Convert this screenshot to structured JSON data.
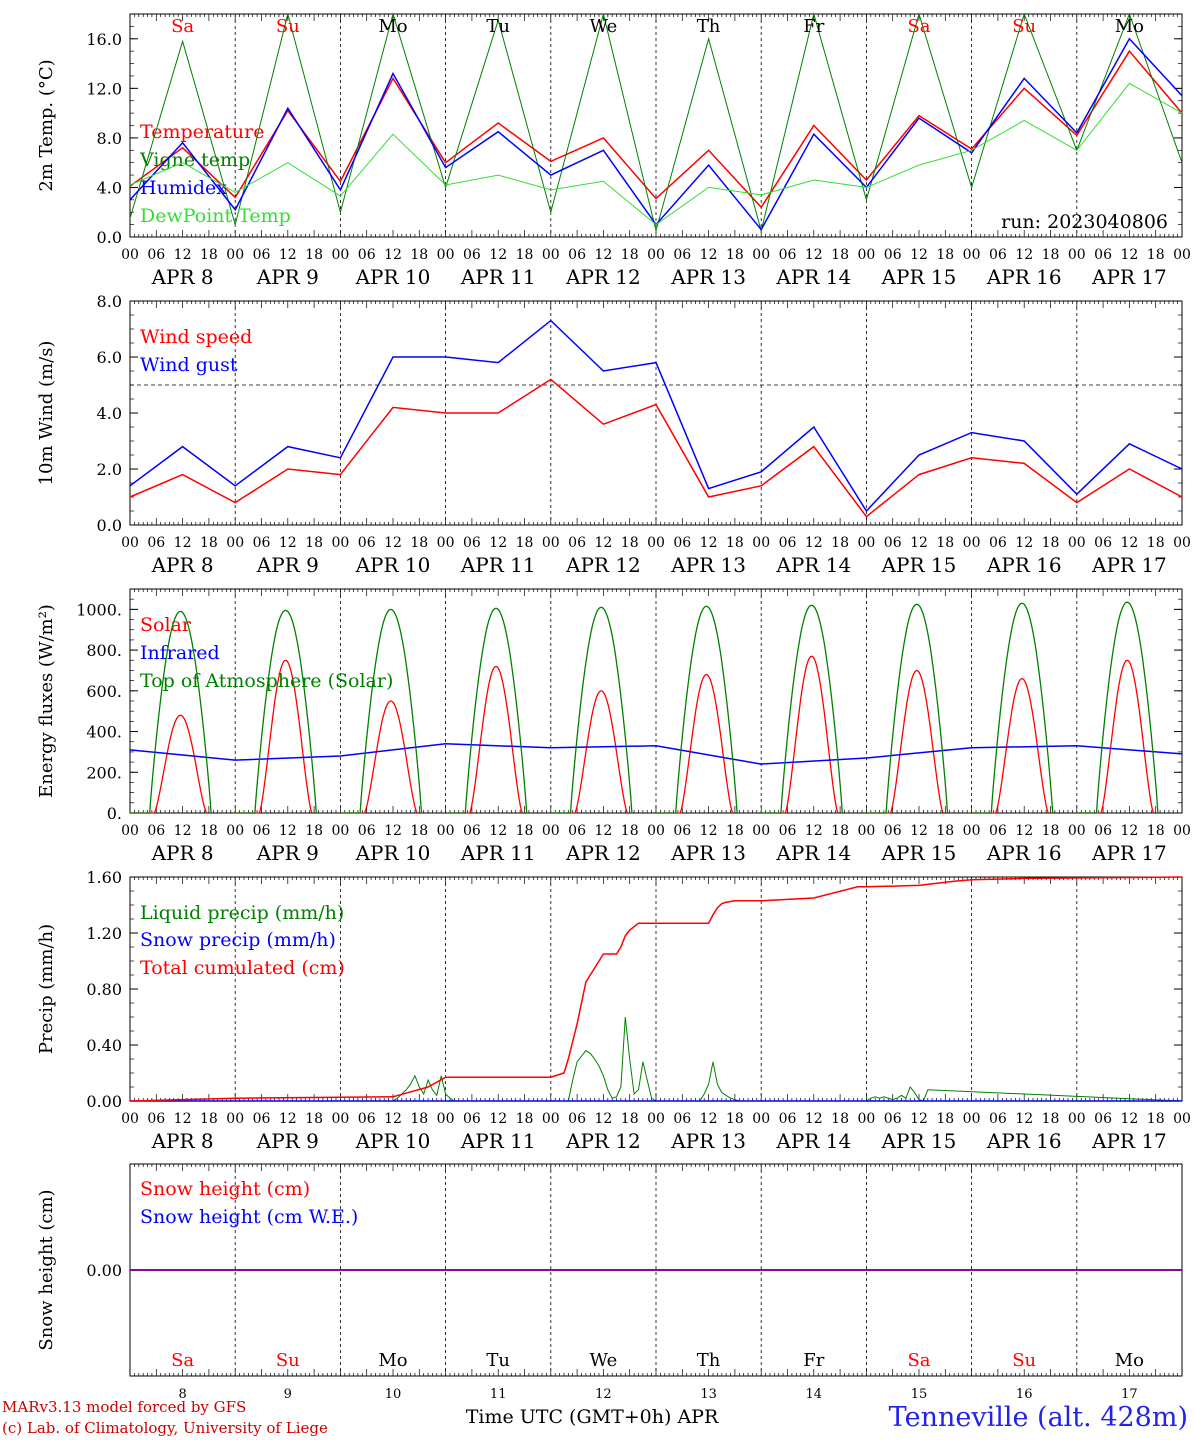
{
  "footer": {
    "credit_line1": "MARv3.13 model forced by GFS",
    "credit_line2": "(c) Lab. of Climatology, University of Liege",
    "station": "Tenneville (alt. 428m)"
  },
  "colors": {
    "temperature": "#ff0000",
    "vigne": "#008000",
    "humidex": "#0000ff",
    "dewpoint": "#33dd33",
    "wind_speed": "#ff0000",
    "wind_gust": "#0000ff",
    "solar": "#ff0000",
    "infrared": "#0000ff",
    "toa": "#008000",
    "liquid": "#008000",
    "snow": "#0000ff",
    "cumulated": "#ff0000",
    "snow_height": "#800080",
    "weekend": "#ff0000",
    "weekday": "#000000"
  },
  "chart_data": {
    "type": "line",
    "run_label": "run: 2023040806",
    "day_names": [
      "Sa",
      "Su",
      "Mo",
      "Tu",
      "We",
      "Th",
      "Fr",
      "Sa",
      "Su",
      "Mo"
    ],
    "weekend_flags": [
      true,
      true,
      false,
      false,
      false,
      false,
      false,
      true,
      true,
      false
    ],
    "date_labels": [
      "APR  8",
      "APR  9",
      "APR 10",
      "APR 11",
      "APR 12",
      "APR 13",
      "APR 14",
      "APR 15",
      "APR 16",
      "APR 17"
    ],
    "hour_ticks": [
      "00",
      "06",
      "12",
      "18"
    ],
    "final_hour_label": "00",
    "bottom_day_numbers": [
      "8",
      "9",
      "10",
      "11",
      "12",
      "13",
      "14",
      "15",
      "16",
      "17"
    ],
    "bottom_axis_label": "Time UTC (GMT+0h) APR",
    "panels": [
      {
        "id": "temp",
        "ylabel": "2m Temp. (°C)",
        "ylim": [
          0,
          18
        ],
        "yticks": [
          0,
          4,
          8,
          12,
          16
        ],
        "ytick_labels": [
          "0.0",
          "4.0",
          "8.0",
          "12.0",
          "16.0"
        ],
        "x": [
          0,
          12,
          24,
          36,
          48,
          60,
          72,
          84,
          96,
          108,
          120,
          132,
          144,
          156,
          168,
          180,
          192,
          204,
          216,
          228,
          240
        ],
        "series": [
          {
            "name": "Temperature",
            "color_key": "temperature",
            "values": [
              4.1,
              7.2,
              3.2,
              10.2,
              4.5,
              12.8,
              6.0,
              9.2,
              6.1,
              8.0,
              3.1,
              7.0,
              2.4,
              9.0,
              4.6,
              9.8,
              7.1,
              12.0,
              8.2,
              15.0,
              10.0
            ]
          },
          {
            "name": "Vigne temp",
            "color_key": "vigne",
            "values": [
              1.5,
              15.8,
              1.0,
              18.0,
              2.0,
              18.0,
              4.0,
              17.5,
              2.0,
              18.0,
              0.5,
              16.0,
              0.5,
              18.0,
              3.0,
              18.0,
              4.0,
              18.0,
              7.0,
              18.0,
              6.0
            ]
          },
          {
            "name": "Humidex",
            "color_key": "humidex",
            "values": [
              3.0,
              7.6,
              2.2,
              10.4,
              3.8,
              13.2,
              5.6,
              8.5,
              5.0,
              7.0,
              1.0,
              5.8,
              0.6,
              8.3,
              4.0,
              9.6,
              6.8,
              12.8,
              8.4,
              16.0,
              11.4
            ]
          },
          {
            "name": "DewPoint Temp",
            "color_key": "dewpoint",
            "values": [
              4.2,
              6.0,
              3.6,
              6.0,
              3.3,
              8.3,
              4.2,
              5.0,
              3.8,
              4.5,
              1.0,
              4.0,
              3.4,
              4.6,
              4.0,
              5.8,
              7.0,
              9.4,
              7.0,
              12.4,
              10.0
            ]
          }
        ]
      },
      {
        "id": "wind",
        "ylabel": "10m Wind (m/s)",
        "ylim": [
          0,
          8
        ],
        "yticks": [
          0,
          2,
          4,
          6,
          8
        ],
        "ytick_labels": [
          "0.0",
          "2.0",
          "4.0",
          "6.0",
          "8.0"
        ],
        "reference_line": 5,
        "x": [
          0,
          12,
          24,
          36,
          48,
          60,
          72,
          84,
          96,
          108,
          120,
          132,
          144,
          156,
          168,
          180,
          192,
          204,
          216,
          228,
          240
        ],
        "series": [
          {
            "name": "Wind speed",
            "color_key": "wind_speed",
            "values": [
              1.0,
              1.8,
              0.8,
              2.0,
              1.8,
              4.2,
              4.0,
              4.0,
              5.2,
              3.6,
              4.3,
              1.0,
              1.4,
              2.8,
              0.3,
              1.8,
              2.4,
              2.2,
              0.8,
              2.0,
              1.0
            ]
          },
          {
            "name": "Wind gust",
            "color_key": "wind_gust",
            "values": [
              1.4,
              2.8,
              1.4,
              2.8,
              2.4,
              6.0,
              6.0,
              5.8,
              7.3,
              5.5,
              5.8,
              1.3,
              1.9,
              3.5,
              0.5,
              2.5,
              3.3,
              3.0,
              1.1,
              2.9,
              2.0
            ]
          }
        ]
      },
      {
        "id": "energy",
        "ylabel": "Energy fluxes (W/m²)",
        "ylim": [
          0,
          1100
        ],
        "yticks": [
          0,
          200,
          400,
          600,
          800,
          1000
        ],
        "ytick_labels": [
          "0.",
          "200.",
          "400.",
          "600.",
          "800.",
          "1000."
        ],
        "series": [
          {
            "name": "Solar",
            "color_key": "solar",
            "daily_peaks": [
              480,
              750,
              550,
              720,
              600,
              680,
              770,
              700,
              660,
              750
            ]
          },
          {
            "name": "Infrared",
            "color_key": "infrared",
            "x": [
              0,
              24,
              48,
              72,
              96,
              120,
              144,
              168,
              192,
              216,
              240
            ],
            "values": [
              310,
              260,
              280,
              340,
              320,
              330,
              240,
              270,
              320,
              330,
              290
            ]
          },
          {
            "name": "Top of Atmosphere (Solar)",
            "color_key": "toa",
            "daily_peaks": [
              990,
              995,
              1000,
              1005,
              1010,
              1015,
              1020,
              1025,
              1030,
              1035
            ]
          }
        ]
      },
      {
        "id": "precip",
        "ylabel": "Precip (mm/h)",
        "ylim": [
          0,
          1.6
        ],
        "yticks": [
          0,
          0.4,
          0.8,
          1.2,
          1.6
        ],
        "ytick_labels": [
          "0.00",
          "0.40",
          "0.80",
          "1.20",
          "1.60"
        ],
        "series": [
          {
            "name": "Liquid precip (mm/h)",
            "color_key": "liquid",
            "x": [
              0,
              60,
              61,
              62,
              63,
              64,
              65,
              66,
              67,
              68,
              69,
              70,
              71,
              72,
              73,
              74,
              100,
              101,
              102,
              103,
              104,
              105,
              106,
              107,
              108,
              109,
              110,
              111,
              112,
              113,
              114,
              115,
              116,
              117,
              118,
              119,
              120,
              121,
              130,
              131,
              132,
              133,
              134,
              135,
              136,
              137,
              138,
              139,
              140,
              168,
              169,
              170,
              171,
              172,
              173,
              174,
              175,
              176,
              177,
              178,
              179,
              180,
              181,
              182,
              240
            ],
            "values": [
              0,
              0,
              0.02,
              0.05,
              0.08,
              0.12,
              0.18,
              0.1,
              0.05,
              0.15,
              0.08,
              0.04,
              0.18,
              0.05,
              0.02,
              0,
              0,
              0.15,
              0.28,
              0.32,
              0.36,
              0.34,
              0.3,
              0.25,
              0.18,
              0.08,
              0.02,
              0.03,
              0.1,
              0.6,
              0.3,
              0.05,
              0.08,
              0.28,
              0.15,
              0.02,
              0,
              0,
              0,
              0.05,
              0.12,
              0.28,
              0.12,
              0.06,
              0.04,
              0.02,
              0.01,
              0,
              0,
              0,
              0.02,
              0.03,
              0.02,
              0.03,
              0.02,
              0.01,
              0.02,
              0.04,
              0.02,
              0.1,
              0.06,
              0.01,
              0,
              0.08,
              0
            ]
          },
          {
            "name": "Snow precip (mm/h)",
            "color_key": "snow",
            "x": [
              0,
              240
            ],
            "values": [
              0,
              0
            ]
          },
          {
            "name": "Total cumulated (cm)",
            "color_key": "cumulated",
            "x": [
              0,
              24,
              60,
              68,
              72,
              96,
              99,
              100,
              102,
              104,
              108,
              111,
              112,
              113,
              114,
              116,
              120,
              132,
              133,
              134,
              135,
              136,
              138,
              144,
              156,
              166,
              168,
              180,
              188,
              192,
              204,
              240
            ],
            "values": [
              0,
              0.02,
              0.03,
              0.1,
              0.17,
              0.17,
              0.2,
              0.3,
              0.55,
              0.85,
              1.05,
              1.05,
              1.1,
              1.18,
              1.22,
              1.27,
              1.27,
              1.27,
              1.33,
              1.38,
              1.41,
              1.42,
              1.43,
              1.43,
              1.45,
              1.53,
              1.53,
              1.54,
              1.57,
              1.58,
              1.59,
              1.6
            ]
          }
        ]
      },
      {
        "id": "snow",
        "ylabel": "Snow height (cm)",
        "ylim": [
          -1,
          1
        ],
        "yticks": [
          0
        ],
        "ytick_labels": [
          "0.00"
        ],
        "series": [
          {
            "name": "Snow height (cm)",
            "color_key": "solar",
            "x": [
              0,
              240
            ],
            "values": [
              0,
              0
            ]
          },
          {
            "name": "Snow height (cm W.E.)",
            "color_key": "humidex",
            "x": [
              0,
              240
            ],
            "values": [
              0,
              0
            ]
          }
        ]
      }
    ]
  }
}
